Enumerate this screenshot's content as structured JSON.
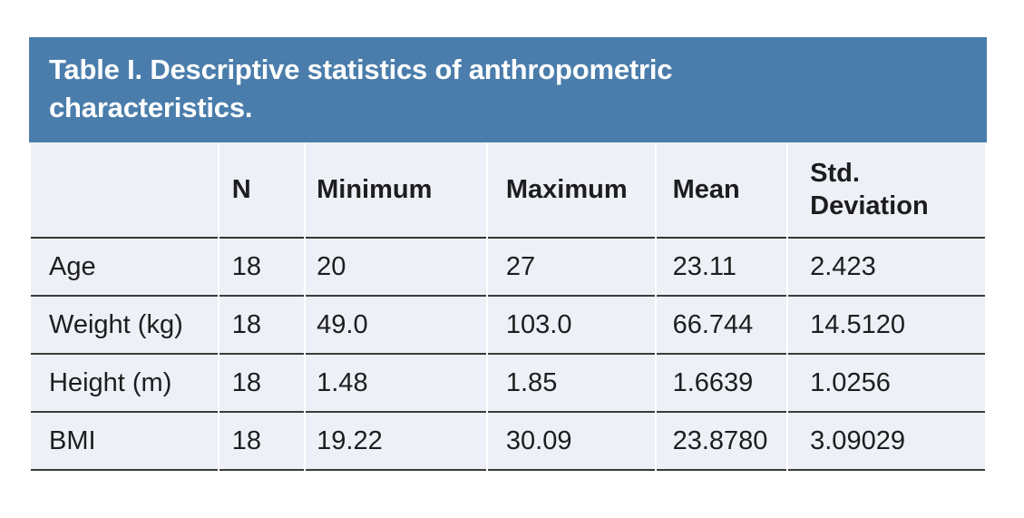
{
  "table": {
    "title": "Table I. Descriptive statistics of anthropometric characteristics.",
    "columns": {
      "label": "",
      "n": "N",
      "minimum": "Minimum",
      "maximum": "Maximum",
      "mean": "Mean",
      "std": "Std. Deviation"
    },
    "rows": [
      {
        "label": "Age",
        "n": "18",
        "minimum": "20",
        "maximum": "27",
        "mean": "23.11",
        "std": "2.423"
      },
      {
        "label": "Weight (kg)",
        "n": "18",
        "minimum": "49.0",
        "maximum": "103.0",
        "mean": "66.744",
        "std": "14.5120"
      },
      {
        "label": "Height (m)",
        "n": "18",
        "minimum": "1.48",
        "maximum": "1.85",
        "mean": "1.6639",
        "std": "1.0256"
      },
      {
        "label": "BMI",
        "n": "18",
        "minimum": "19.22",
        "maximum": "30.09",
        "mean": "23.8780",
        "std": "3.09029"
      }
    ]
  },
  "colors": {
    "title_bar_bg": "#4a7dab",
    "title_text": "#ffffff",
    "row_bg": "#edf0f6",
    "rule_line": "#3b3b3b",
    "body_text": "#1d1d1f",
    "page_bg": "#ffffff"
  }
}
